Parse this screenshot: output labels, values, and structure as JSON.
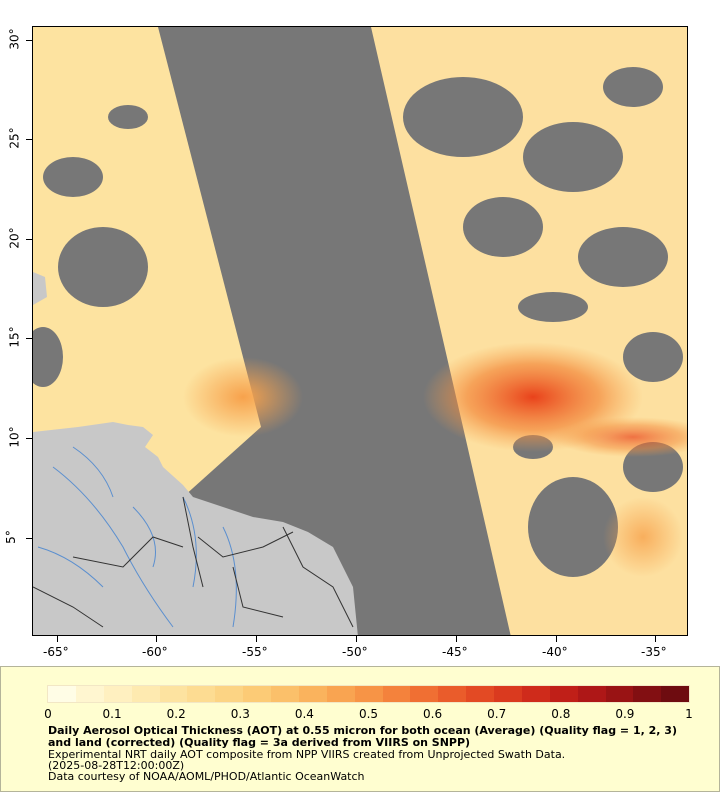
{
  "map": {
    "x_labels": [
      "-65°",
      "-60°",
      "-55°",
      "-50°",
      "-45°",
      "-40°",
      "-35°"
    ],
    "y_labels": [
      "30°",
      "25°",
      "20°",
      "15°",
      "10°",
      "5°"
    ],
    "colors": {
      "no_data": "#777777",
      "land": "#c8c8c8",
      "rivers": "#5b8fcf",
      "borders": "#333333",
      "aot_low": "#fde9b0",
      "aot_mid": "#fbc36a",
      "aot_high": "#e8431c"
    }
  },
  "legend": {
    "tick_labels": [
      "0",
      "0.1",
      "0.2",
      "0.3",
      "0.4",
      "0.5",
      "0.6",
      "0.7",
      "0.8",
      "0.9",
      "1"
    ],
    "colors": [
      "#fffde6",
      "#fff6d0",
      "#fff0c0",
      "#feeab0",
      "#fde3a0",
      "#fddc92",
      "#fcd484",
      "#fccb76",
      "#fbc06a",
      "#fab35d",
      "#f9a451",
      "#f79446",
      "#f4823c",
      "#f06f33",
      "#ea5c2b",
      "#e34a24",
      "#da3a1f",
      "#cf2b1b",
      "#c01f18",
      "#ae1717",
      "#991314",
      "#820f12",
      "#6e0c10"
    ],
    "title": "Daily Aerosol Optical Thickness (AOT) at 0.55 micron for both ocean (Average) (Quality flag = 1, 2, 3) and land (corrected) (Quality flag = 3a derived from VIIRS on SNPP)",
    "line1": "Experimental NRT daily AOT composite from NPP VIIRS created from Unprojected Swath Data.",
    "line2": "(2025-08-28T12:00:00Z)",
    "line3": "Data courtesy of NOAA/AOML/PHOD/Atlantic OceanWatch"
  }
}
